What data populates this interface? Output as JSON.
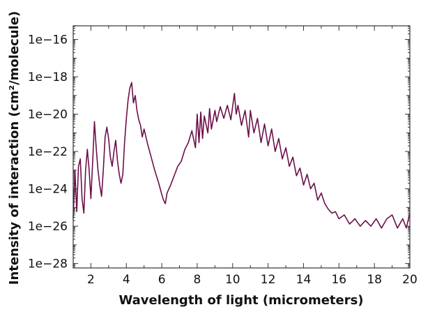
{
  "chart_data": {
    "type": "line",
    "title": "",
    "xlabel": "Wavelength of light (micrometers)",
    "ylabel": "Intensity of interaction (cm²/molecule)",
    "xlim": [
      1,
      20
    ],
    "ylim": [
      5.8e-29,
      5.4e-16
    ],
    "yscale": "log",
    "grid": false,
    "x_ticks": [
      2,
      4,
      6,
      8,
      10,
      12,
      14,
      16,
      18,
      20
    ],
    "x_tick_labels": [
      "2",
      "4",
      "6",
      "8",
      "10",
      "12",
      "14",
      "16",
      "18",
      "20"
    ],
    "y_ticks": [
      1e-16,
      1e-18,
      1e-20,
      1e-22,
      1e-24,
      1e-26,
      1e-28
    ],
    "y_tick_labels": [
      "1e−16",
      "1e−18",
      "1e−20",
      "1e−22",
      "1e−24",
      "1e−26",
      "1e−28"
    ],
    "series": [
      {
        "color": "#6b0f4a",
        "points": [
          [
            1.0,
            2.5e-26
          ],
          [
            1.1,
            1e-23
          ],
          [
            1.2,
            6e-26
          ],
          [
            1.3,
            1.6e-23
          ],
          [
            1.4,
            4e-23
          ],
          [
            1.5,
            3e-25
          ],
          [
            1.6,
            5e-26
          ],
          [
            1.7,
            1e-23
          ],
          [
            1.8,
            1.3e-22
          ],
          [
            1.9,
            1e-23
          ],
          [
            2.0,
            3e-25
          ],
          [
            2.1,
            3e-23
          ],
          [
            2.2,
            4e-21
          ],
          [
            2.3,
            1.6e-22
          ],
          [
            2.4,
            1e-23
          ],
          [
            2.5,
            1.6e-24
          ],
          [
            2.6,
            4e-25
          ],
          [
            2.7,
            1e-23
          ],
          [
            2.8,
            6e-22
          ],
          [
            2.9,
            2e-21
          ],
          [
            3.0,
            5e-22
          ],
          [
            3.1,
            5e-23
          ],
          [
            3.2,
            1.6e-23
          ],
          [
            3.3,
            1e-22
          ],
          [
            3.4,
            4e-22
          ],
          [
            3.5,
            3e-23
          ],
          [
            3.6,
            6e-24
          ],
          [
            3.7,
            2e-24
          ],
          [
            3.8,
            6e-24
          ],
          [
            3.9,
            3e-22
          ],
          [
            4.0,
            6e-21
          ],
          [
            4.1,
            6e-20
          ],
          [
            4.2,
            2.5e-19
          ],
          [
            4.3,
            5e-19
          ],
          [
            4.4,
            4e-20
          ],
          [
            4.5,
            1e-19
          ],
          [
            4.6,
            1.6e-20
          ],
          [
            4.7,
            5e-21
          ],
          [
            4.8,
            2.5e-21
          ],
          [
            4.9,
            6e-22
          ],
          [
            5.0,
            1.6e-21
          ],
          [
            5.2,
            2.5e-22
          ],
          [
            5.4,
            5e-23
          ],
          [
            5.6,
            1e-23
          ],
          [
            5.8,
            2.5e-24
          ],
          [
            6.0,
            5e-25
          ],
          [
            6.1,
            2.5e-25
          ],
          [
            6.2,
            1.6e-25
          ],
          [
            6.3,
            6e-25
          ],
          [
            6.5,
            1.6e-24
          ],
          [
            6.7,
            5e-24
          ],
          [
            6.9,
            1.6e-23
          ],
          [
            7.1,
            3e-23
          ],
          [
            7.3,
            1.3e-22
          ],
          [
            7.5,
            3e-22
          ],
          [
            7.7,
            1.3e-21
          ],
          [
            7.9,
            1.6e-22
          ],
          [
            8.0,
            1e-20
          ],
          [
            8.1,
            3e-22
          ],
          [
            8.2,
            1.3e-20
          ],
          [
            8.3,
            5e-22
          ],
          [
            8.4,
            8e-21
          ],
          [
            8.6,
            1e-21
          ],
          [
            8.7,
            2e-20
          ],
          [
            8.8,
            1.6e-21
          ],
          [
            9.0,
            1.6e-20
          ],
          [
            9.1,
            4e-21
          ],
          [
            9.3,
            2.5e-20
          ],
          [
            9.5,
            6e-21
          ],
          [
            9.7,
            3e-20
          ],
          [
            9.9,
            5e-21
          ],
          [
            10.1,
            1.3e-19
          ],
          [
            10.2,
            1e-20
          ],
          [
            10.3,
            3e-20
          ],
          [
            10.5,
            2.5e-21
          ],
          [
            10.7,
            1.6e-20
          ],
          [
            10.9,
            6e-22
          ],
          [
            11.0,
            1.6e-20
          ],
          [
            11.2,
            1e-21
          ],
          [
            11.4,
            6e-21
          ],
          [
            11.6,
            3e-22
          ],
          [
            11.8,
            3e-21
          ],
          [
            12.0,
            2e-22
          ],
          [
            12.2,
            1.6e-21
          ],
          [
            12.4,
            1e-22
          ],
          [
            12.6,
            5e-22
          ],
          [
            12.8,
            4e-23
          ],
          [
            13.0,
            1.6e-22
          ],
          [
            13.2,
            1.6e-23
          ],
          [
            13.4,
            5e-23
          ],
          [
            13.6,
            5e-24
          ],
          [
            13.8,
            1.3e-23
          ],
          [
            14.0,
            1.6e-24
          ],
          [
            14.2,
            6e-24
          ],
          [
            14.4,
            1e-24
          ],
          [
            14.6,
            2e-24
          ],
          [
            14.8,
            2.5e-25
          ],
          [
            15.0,
            6e-25
          ],
          [
            15.2,
            1.6e-25
          ],
          [
            15.4,
            8e-26
          ],
          [
            15.6,
            5e-26
          ],
          [
            15.8,
            6e-26
          ],
          [
            16.0,
            2.5e-26
          ],
          [
            16.3,
            4e-26
          ],
          [
            16.6,
            1.3e-26
          ],
          [
            16.9,
            2.5e-26
          ],
          [
            17.2,
            1e-26
          ],
          [
            17.5,
            2e-26
          ],
          [
            17.8,
            1e-26
          ],
          [
            18.1,
            2.5e-26
          ],
          [
            18.4,
            8e-27
          ],
          [
            18.7,
            2.5e-26
          ],
          [
            19.0,
            4e-26
          ],
          [
            19.3,
            8e-27
          ],
          [
            19.6,
            2.5e-26
          ],
          [
            19.8,
            8e-27
          ],
          [
            20.0,
            5e-26
          ]
        ]
      }
    ]
  }
}
